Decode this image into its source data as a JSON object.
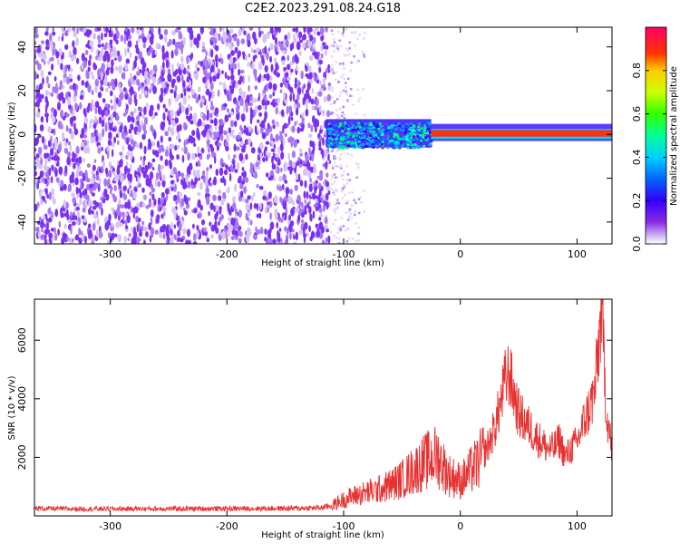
{
  "title": "C2E2.2023.291.08.24.G18",
  "colors": {
    "frame": "#000000",
    "snr_line": "#e83030",
    "background": "#ffffff",
    "noise_purple": "#7b2ff7",
    "noise_light": "#cbb2f5"
  },
  "chart_data": [
    {
      "type": "heatmap",
      "xlabel": "Height of straight line (km)",
      "ylabel": "Frequency (Hz)",
      "xlim": [
        -365,
        130
      ],
      "ylim": [
        -50,
        49
      ],
      "xticks": [
        -300,
        -200,
        -100,
        0,
        100
      ],
      "xtick_labels": [
        "-300",
        "-200",
        "-100",
        "0",
        "100"
      ],
      "yticks": [
        -40,
        -20,
        0,
        20,
        40
      ],
      "ytick_labels": [
        "-40",
        "-20",
        "0",
        "20",
        "40"
      ],
      "grid": false,
      "colorbar": {
        "label": "Normalized spectral amplitude",
        "range": [
          0,
          1
        ],
        "ticks": [
          0.0,
          0.2,
          0.4,
          0.6,
          0.8
        ],
        "tick_labels": [
          "0.0",
          "0.2",
          "0.4",
          "0.6",
          "0.8"
        ],
        "colormap": "hsv-rainbow (white at 0, purple low, red high)"
      },
      "regions": [
        {
          "x_range": [
            -365,
            -112
          ],
          "description": "broadband noise",
          "freq_range": [
            -50,
            49
          ],
          "amplitude": 0.1
        },
        {
          "x_range": [
            -112,
            -80
          ],
          "description": "sparse noise",
          "freq_range": [
            -50,
            49
          ],
          "amplitude": 0.05
        },
        {
          "x_range": [
            -115,
            -25
          ],
          "description": "scattered carrier",
          "freq_range": [
            -6,
            7
          ],
          "amplitude": 0.35
        },
        {
          "x_range": [
            -25,
            130
          ],
          "description": "clean carrier line",
          "freq_range": [
            -1,
            2
          ],
          "amplitude": 0.95
        }
      ]
    },
    {
      "type": "line",
      "xlabel": "Height of straight line (km)",
      "ylabel": "SNR (10 * v/v)",
      "xlim": [
        -365,
        130
      ],
      "ylim": [
        0,
        7400
      ],
      "xticks": [
        -300,
        -200,
        -100,
        0,
        100
      ],
      "xtick_labels": [
        "-300",
        "-200",
        "-100",
        "0",
        "100"
      ],
      "yticks": [
        2000,
        4000,
        6000
      ],
      "ytick_labels": [
        "2000",
        "4000",
        "6000"
      ],
      "grid": false,
      "series": [
        {
          "x": [
            -365,
            -340,
            -300,
            -250,
            -200,
            -150,
            -120,
            -110,
            -100,
            -90,
            -80,
            -70,
            -60,
            -50,
            -40,
            -30,
            -20,
            -10,
            -5,
            0,
            5,
            10,
            15,
            20,
            25,
            30,
            35,
            38,
            42,
            45,
            50,
            55,
            60,
            65,
            70,
            75,
            80,
            85,
            90,
            95,
            100,
            105,
            110,
            115,
            118,
            121,
            123,
            125,
            130
          ],
          "y": [
            260,
            240,
            240,
            245,
            250,
            255,
            275,
            350,
            550,
            700,
            800,
            900,
            1050,
            1250,
            1550,
            1850,
            2050,
            1400,
            1300,
            1200,
            1350,
            1600,
            1800,
            2100,
            2500,
            3100,
            3900,
            4550,
            4900,
            4300,
            3500,
            3200,
            3000,
            2700,
            2500,
            2300,
            2300,
            2600,
            2000,
            2300,
            2500,
            3100,
            3600,
            4200,
            5500,
            7200,
            5600,
            3700,
            2200
          ]
        }
      ]
    }
  ]
}
